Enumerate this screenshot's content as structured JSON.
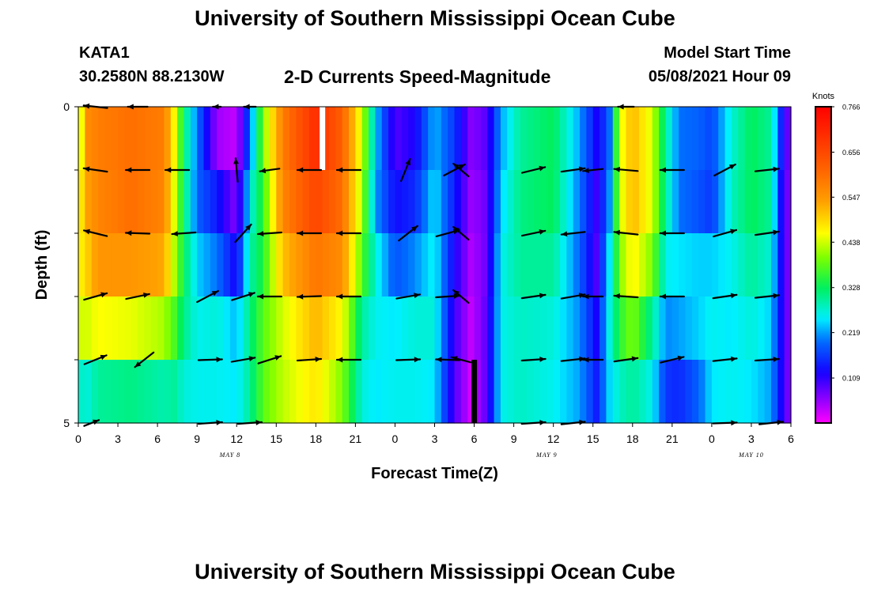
{
  "page": {
    "title": "University of Southern Mississippi Ocean Cube",
    "footer_title": "University of Southern Mississippi Ocean Cube",
    "station_id": "KATA1",
    "station_coords": "30.2580N  88.2130W",
    "model_start_label": "Model Start Time",
    "model_start_value": "05/08/2021 Hour 09"
  },
  "chart_data": {
    "type": "heatmap",
    "title": "2-D Currents Speed-Magnitude",
    "xlabel": "Forecast Time(Z)",
    "ylabel": "Depth (ft)",
    "x_hours": [
      0,
      3,
      6,
      9,
      12,
      15,
      18,
      21,
      24,
      27,
      30,
      33,
      36,
      39,
      42,
      45,
      48,
      51,
      54
    ],
    "x_tick_labels": [
      "0",
      "3",
      "6",
      "9",
      "12",
      "15",
      "18",
      "21",
      "0",
      "3",
      "6",
      "9",
      "12",
      "15",
      "18",
      "21",
      "0",
      "3",
      "6"
    ],
    "xlim": [
      0,
      54
    ],
    "date_labels": [
      {
        "label": "MAY 8",
        "hour": 11.5
      },
      {
        "label": "MAY 9",
        "hour": 35.5
      },
      {
        "label": "MAY 10",
        "hour": 51
      }
    ],
    "y_tick_labels": [
      "0",
      "5"
    ],
    "ylim": [
      0,
      5
    ],
    "depth_rows": 5,
    "colorbar": {
      "unit": "Knots",
      "min": 0.0,
      "max": 0.766,
      "ticks": [
        0.766,
        0.656,
        0.547,
        0.438,
        0.328,
        0.219,
        0.109
      ]
    },
    "speed_profile_knots": [
      {
        "hour": 0.0,
        "values": [
          0.4,
          0.45,
          0.46,
          0.44,
          0.28
        ]
      },
      {
        "hour": 0.7,
        "values": [
          0.56,
          0.54,
          0.5,
          0.44,
          0.27
        ]
      },
      {
        "hour": 1.5,
        "values": [
          0.58,
          0.57,
          0.55,
          0.46,
          0.3
        ]
      },
      {
        "hour": 4.0,
        "values": [
          0.6,
          0.6,
          0.55,
          0.45,
          0.31
        ]
      },
      {
        "hour": 6.5,
        "values": [
          0.58,
          0.57,
          0.53,
          0.42,
          0.29
        ]
      },
      {
        "hour": 7.3,
        "values": [
          0.46,
          0.44,
          0.42,
          0.37,
          0.3
        ]
      },
      {
        "hour": 8.0,
        "values": [
          0.32,
          0.32,
          0.33,
          0.31,
          0.27
        ]
      },
      {
        "hour": 9.0,
        "values": [
          0.2,
          0.19,
          0.24,
          0.26,
          0.26
        ]
      },
      {
        "hour": 10.5,
        "values": [
          0.05,
          0.14,
          0.2,
          0.27,
          0.26
        ]
      },
      {
        "hour": 12.0,
        "values": [
          0.03,
          0.06,
          0.12,
          0.23,
          0.25
        ]
      },
      {
        "hour": 13.0,
        "values": [
          0.19,
          0.26,
          0.29,
          0.31,
          0.3
        ]
      },
      {
        "hour": 14.0,
        "values": [
          0.4,
          0.36,
          0.35,
          0.38,
          0.38
        ]
      },
      {
        "hour": 15.5,
        "values": [
          0.58,
          0.57,
          0.51,
          0.44,
          0.43
        ]
      },
      {
        "hour": 18.0,
        "values": [
          0.7,
          0.66,
          0.59,
          0.52,
          0.48
        ]
      },
      {
        "hour": 20.0,
        "values": [
          0.62,
          0.6,
          0.56,
          0.46,
          0.4
        ]
      },
      {
        "hour": 21.5,
        "values": [
          0.44,
          0.42,
          0.38,
          0.3,
          0.27
        ]
      },
      {
        "hour": 22.5,
        "values": [
          0.24,
          0.22,
          0.27,
          0.26,
          0.25
        ]
      },
      {
        "hour": 24.0,
        "values": [
          0.09,
          0.13,
          0.18,
          0.25,
          0.26
        ]
      },
      {
        "hour": 25.5,
        "values": [
          0.12,
          0.15,
          0.21,
          0.27,
          0.26
        ]
      },
      {
        "hour": 27.0,
        "values": [
          0.23,
          0.25,
          0.26,
          0.27,
          0.25
        ]
      },
      {
        "hour": 28.5,
        "values": [
          0.16,
          0.14,
          0.12,
          0.1,
          0.09
        ]
      },
      {
        "hour": 29.8,
        "values": [
          0.06,
          0.05,
          0.04,
          0.03,
          0.02
        ]
      },
      {
        "hour": 31.0,
        "values": [
          0.09,
          0.08,
          0.08,
          0.09,
          0.09
        ]
      },
      {
        "hour": 32.0,
        "values": [
          0.22,
          0.24,
          0.26,
          0.26,
          0.26
        ]
      },
      {
        "hour": 33.5,
        "values": [
          0.3,
          0.31,
          0.3,
          0.28,
          0.28
        ]
      },
      {
        "hour": 36.0,
        "values": [
          0.33,
          0.33,
          0.3,
          0.27,
          0.26
        ]
      },
      {
        "hour": 38.0,
        "values": [
          0.22,
          0.2,
          0.19,
          0.21,
          0.22
        ]
      },
      {
        "hour": 39.3,
        "values": [
          0.12,
          0.1,
          0.09,
          0.12,
          0.14
        ]
      },
      {
        "hour": 40.2,
        "values": [
          0.18,
          0.2,
          0.24,
          0.26,
          0.24
        ]
      },
      {
        "hour": 41.0,
        "values": [
          0.44,
          0.43,
          0.4,
          0.35,
          0.28
        ]
      },
      {
        "hour": 42.0,
        "values": [
          0.52,
          0.52,
          0.47,
          0.4,
          0.3
        ]
      },
      {
        "hour": 43.5,
        "values": [
          0.44,
          0.44,
          0.4,
          0.3,
          0.26
        ]
      },
      {
        "hour": 44.5,
        "values": [
          0.3,
          0.3,
          0.26,
          0.21,
          0.16
        ]
      },
      {
        "hour": 45.5,
        "values": [
          0.2,
          0.2,
          0.25,
          0.22,
          0.15
        ]
      },
      {
        "hour": 47.0,
        "values": [
          0.19,
          0.18,
          0.24,
          0.24,
          0.19
        ]
      },
      {
        "hour": 48.0,
        "values": [
          0.17,
          0.16,
          0.24,
          0.26,
          0.25
        ]
      },
      {
        "hour": 49.5,
        "values": [
          0.27,
          0.28,
          0.26,
          0.25,
          0.26
        ]
      },
      {
        "hour": 51.0,
        "values": [
          0.33,
          0.33,
          0.3,
          0.27,
          0.25
        ]
      },
      {
        "hour": 52.5,
        "values": [
          0.3,
          0.3,
          0.27,
          0.24,
          0.22
        ]
      },
      {
        "hour": 53.3,
        "values": [
          0.14,
          0.12,
          0.12,
          0.12,
          0.12
        ]
      },
      {
        "hour": 54.0,
        "values": [
          0.05,
          0.05,
          0.05,
          0.05,
          0.05
        ]
      }
    ],
    "special_columns": [
      {
        "hour": 18.5,
        "row": 0,
        "color": "#ffffff"
      },
      {
        "hour": 30.0,
        "row": 4,
        "color": "#000000"
      }
    ],
    "current_vectors": [
      {
        "hour": 1.3,
        "depth": 0.0,
        "angle_deg": 174,
        "length": 0.6
      },
      {
        "hour": 4.5,
        "depth": 0.0,
        "angle_deg": 180,
        "length": 0.5
      },
      {
        "hour": 10.5,
        "depth": 0.0,
        "angle_deg": 180,
        "length": 0.2
      },
      {
        "hour": 13.0,
        "depth": 0.0,
        "angle_deg": 180,
        "length": 0.3
      },
      {
        "hour": 41.5,
        "depth": 0.0,
        "angle_deg": 180,
        "length": 0.4
      },
      {
        "hour": 1.3,
        "depth": 1.0,
        "angle_deg": 172,
        "length": 0.6
      },
      {
        "hour": 4.5,
        "depth": 1.0,
        "angle_deg": 180,
        "length": 0.6
      },
      {
        "hour": 7.5,
        "depth": 1.0,
        "angle_deg": 180,
        "length": 0.6
      },
      {
        "hour": 12.0,
        "depth": 1.0,
        "angle_deg": 95,
        "length": 0.6
      },
      {
        "hour": 14.5,
        "depth": 1.0,
        "angle_deg": 188,
        "length": 0.5
      },
      {
        "hour": 17.5,
        "depth": 1.0,
        "angle_deg": 180,
        "length": 0.6
      },
      {
        "hour": 20.5,
        "depth": 1.0,
        "angle_deg": 180,
        "length": 0.6
      },
      {
        "hour": 24.8,
        "depth": 1.0,
        "angle_deg": 68,
        "length": 0.6
      },
      {
        "hour": 28.5,
        "depth": 1.0,
        "angle_deg": 28,
        "length": 0.6
      },
      {
        "hour": 29.0,
        "depth": 1.0,
        "angle_deg": 140,
        "length": 0.5
      },
      {
        "hour": 34.5,
        "depth": 1.0,
        "angle_deg": 14,
        "length": 0.6
      },
      {
        "hour": 37.5,
        "depth": 1.0,
        "angle_deg": 8,
        "length": 0.6
      },
      {
        "hour": 39.0,
        "depth": 1.0,
        "angle_deg": 186,
        "length": 0.5
      },
      {
        "hour": 41.5,
        "depth": 1.0,
        "angle_deg": 175,
        "length": 0.6
      },
      {
        "hour": 45.0,
        "depth": 1.0,
        "angle_deg": 180,
        "length": 0.6
      },
      {
        "hour": 49.0,
        "depth": 1.0,
        "angle_deg": 28,
        "length": 0.6
      },
      {
        "hour": 52.2,
        "depth": 1.0,
        "angle_deg": 6,
        "length": 0.6
      },
      {
        "hour": 1.3,
        "depth": 2.0,
        "angle_deg": 166,
        "length": 0.6
      },
      {
        "hour": 4.5,
        "depth": 2.0,
        "angle_deg": 178,
        "length": 0.6
      },
      {
        "hour": 8.0,
        "depth": 2.0,
        "angle_deg": 184,
        "length": 0.6
      },
      {
        "hour": 12.5,
        "depth": 2.0,
        "angle_deg": 48,
        "length": 0.6
      },
      {
        "hour": 14.5,
        "depth": 2.0,
        "angle_deg": 184,
        "length": 0.6
      },
      {
        "hour": 17.5,
        "depth": 2.0,
        "angle_deg": 180,
        "length": 0.6
      },
      {
        "hour": 20.5,
        "depth": 2.0,
        "angle_deg": 180,
        "length": 0.6
      },
      {
        "hour": 25.0,
        "depth": 2.0,
        "angle_deg": 38,
        "length": 0.6
      },
      {
        "hour": 28.0,
        "depth": 2.0,
        "angle_deg": 15,
        "length": 0.6
      },
      {
        "hour": 29.0,
        "depth": 2.0,
        "angle_deg": 140,
        "length": 0.5
      },
      {
        "hour": 34.5,
        "depth": 2.0,
        "angle_deg": 12,
        "length": 0.6
      },
      {
        "hour": 37.5,
        "depth": 2.0,
        "angle_deg": 186,
        "length": 0.6
      },
      {
        "hour": 41.5,
        "depth": 2.0,
        "angle_deg": 174,
        "length": 0.6
      },
      {
        "hour": 45.0,
        "depth": 2.0,
        "angle_deg": 180,
        "length": 0.6
      },
      {
        "hour": 49.0,
        "depth": 2.0,
        "angle_deg": 16,
        "length": 0.6
      },
      {
        "hour": 52.2,
        "depth": 2.0,
        "angle_deg": 8,
        "length": 0.6
      },
      {
        "hour": 1.3,
        "depth": 3.0,
        "angle_deg": 16,
        "length": 0.6
      },
      {
        "hour": 4.5,
        "depth": 3.0,
        "angle_deg": 12,
        "length": 0.6
      },
      {
        "hour": 9.8,
        "depth": 3.0,
        "angle_deg": 28,
        "length": 0.6
      },
      {
        "hour": 12.5,
        "depth": 3.0,
        "angle_deg": 18,
        "length": 0.6
      },
      {
        "hour": 14.5,
        "depth": 3.0,
        "angle_deg": 180,
        "length": 0.6
      },
      {
        "hour": 17.5,
        "depth": 3.0,
        "angle_deg": 182,
        "length": 0.6
      },
      {
        "hour": 20.5,
        "depth": 3.0,
        "angle_deg": 180,
        "length": 0.6
      },
      {
        "hour": 25.0,
        "depth": 3.0,
        "angle_deg": 10,
        "length": 0.6
      },
      {
        "hour": 28.0,
        "depth": 3.0,
        "angle_deg": 4,
        "length": 0.6
      },
      {
        "hour": 29.0,
        "depth": 3.0,
        "angle_deg": 140,
        "length": 0.5
      },
      {
        "hour": 34.5,
        "depth": 3.0,
        "angle_deg": 8,
        "length": 0.6
      },
      {
        "hour": 37.5,
        "depth": 3.0,
        "angle_deg": 10,
        "length": 0.6
      },
      {
        "hour": 39.0,
        "depth": 3.0,
        "angle_deg": 180,
        "length": 0.5
      },
      {
        "hour": 41.5,
        "depth": 3.0,
        "angle_deg": 176,
        "length": 0.6
      },
      {
        "hour": 45.0,
        "depth": 3.0,
        "angle_deg": 180,
        "length": 0.6
      },
      {
        "hour": 49.0,
        "depth": 3.0,
        "angle_deg": 8,
        "length": 0.6
      },
      {
        "hour": 52.2,
        "depth": 3.0,
        "angle_deg": 6,
        "length": 0.6
      },
      {
        "hour": 1.3,
        "depth": 4.0,
        "angle_deg": 22,
        "length": 0.6
      },
      {
        "hour": 5.0,
        "depth": 4.0,
        "angle_deg": 218,
        "length": 0.6
      },
      {
        "hour": 10.0,
        "depth": 4.0,
        "angle_deg": 2,
        "length": 0.6
      },
      {
        "hour": 12.5,
        "depth": 4.0,
        "angle_deg": 10,
        "length": 0.6
      },
      {
        "hour": 14.5,
        "depth": 4.0,
        "angle_deg": 18,
        "length": 0.6
      },
      {
        "hour": 17.5,
        "depth": 4.0,
        "angle_deg": 4,
        "length": 0.6
      },
      {
        "hour": 20.5,
        "depth": 4.0,
        "angle_deg": 180,
        "length": 0.6
      },
      {
        "hour": 25.0,
        "depth": 4.0,
        "angle_deg": 2,
        "length": 0.6
      },
      {
        "hour": 28.0,
        "depth": 4.0,
        "angle_deg": 178,
        "length": 0.6
      },
      {
        "hour": 29.0,
        "depth": 4.0,
        "angle_deg": 165,
        "length": 0.5
      },
      {
        "hour": 34.5,
        "depth": 4.0,
        "angle_deg": 4,
        "length": 0.6
      },
      {
        "hour": 37.5,
        "depth": 4.0,
        "angle_deg": 6,
        "length": 0.6
      },
      {
        "hour": 39.0,
        "depth": 4.0,
        "angle_deg": 180,
        "length": 0.5
      },
      {
        "hour": 41.5,
        "depth": 4.0,
        "angle_deg": 8,
        "length": 0.6
      },
      {
        "hour": 45.0,
        "depth": 4.0,
        "angle_deg": 14,
        "length": 0.6
      },
      {
        "hour": 49.0,
        "depth": 4.0,
        "angle_deg": 6,
        "length": 0.6
      },
      {
        "hour": 52.2,
        "depth": 4.0,
        "angle_deg": 4,
        "length": 0.6
      },
      {
        "hour": 1.0,
        "depth": 5.0,
        "angle_deg": 22,
        "length": 0.4
      },
      {
        "hour": 10.0,
        "depth": 5.0,
        "angle_deg": 4,
        "length": 0.6
      },
      {
        "hour": 13.0,
        "depth": 5.0,
        "angle_deg": 4,
        "length": 0.6
      },
      {
        "hour": 34.5,
        "depth": 5.0,
        "angle_deg": 4,
        "length": 0.6
      },
      {
        "hour": 37.5,
        "depth": 5.0,
        "angle_deg": 6,
        "length": 0.6
      },
      {
        "hour": 49.0,
        "depth": 5.0,
        "angle_deg": 2,
        "length": 0.6
      },
      {
        "hour": 52.5,
        "depth": 5.0,
        "angle_deg": 6,
        "length": 0.6
      }
    ]
  }
}
